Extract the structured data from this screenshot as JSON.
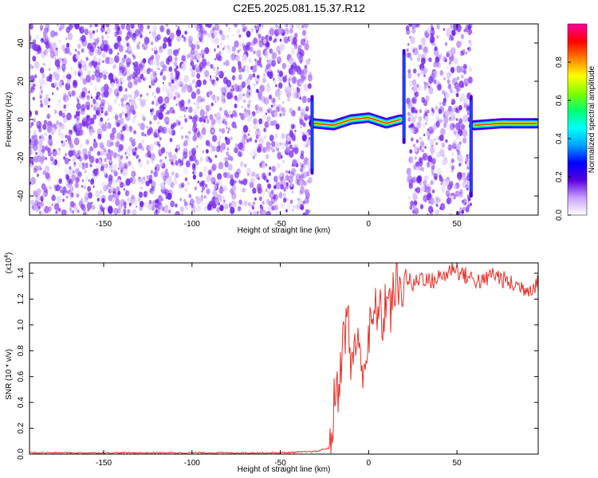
{
  "title": "C2E5.2025.081.15.37.R12",
  "chart_data": [
    {
      "type": "heatmap",
      "xlabel": "Height of straight line (km)",
      "ylabel": "Frequency (Hz)",
      "xlim": [
        -192,
        96
      ],
      "ylim": [
        -50,
        50
      ],
      "xticks": [
        -150,
        -100,
        -50,
        0,
        50
      ],
      "yticks": [
        -40,
        -20,
        0,
        20,
        40
      ],
      "colorbar": {
        "label": "Normalized spectral amplitude",
        "range": [
          0,
          1
        ],
        "ticks": [
          "0.0",
          "0.2",
          "0.4",
          "0.6",
          "0.8"
        ],
        "colors": [
          "#ffffff",
          "#c8a0ff",
          "#5a00e0",
          "#0000ff",
          "#00a0ff",
          "#00ffff",
          "#00ff70",
          "#80ff00",
          "#ffff00",
          "#ff8000",
          "#ff0000",
          "#ff00a0"
        ]
      },
      "features": {
        "noise_regions_km": [
          [
            -192,
            -33
          ],
          [
            22,
            58
          ]
        ],
        "tone_track": [
          {
            "x": -31,
            "y": -2
          },
          {
            "x": -20,
            "y": -3
          },
          {
            "x": -10,
            "y": 0
          },
          {
            "x": 0,
            "y": 1
          },
          {
            "x": 10,
            "y": -2
          },
          {
            "x": 18,
            "y": 0
          },
          {
            "x": 60,
            "y": -3
          },
          {
            "x": 75,
            "y": -2
          },
          {
            "x": 95,
            "y": -2
          }
        ],
        "vertical_spikes_km": [
          -32,
          20,
          58
        ]
      }
    },
    {
      "type": "line",
      "xlabel": "Height of straight line (km)",
      "ylabel": "SNR (10 * v/v)",
      "multiplier_label": "(x10",
      "multiplier_exp": "4",
      "multiplier_close": ")",
      "xlim": [
        -192,
        96
      ],
      "ylim": [
        0,
        1.48
      ],
      "xticks": [
        -150,
        -100,
        -50,
        0,
        50
      ],
      "yticks": [
        "0.0",
        "0.2",
        "0.4",
        "0.6",
        "0.8",
        "1.0",
        "1.2",
        "1.4"
      ],
      "line_color": "#e8312a",
      "series": [
        {
          "x": [
            -192,
            -150,
            -100,
            -50,
            -30,
            -22,
            -20,
            -19,
            -18,
            -15,
            -12,
            -10,
            -8,
            -5,
            -2,
            0,
            3,
            5,
            8,
            10,
            13,
            15,
            18,
            20,
            25,
            30,
            35,
            40,
            45,
            48,
            50,
            55,
            60,
            65,
            70,
            75,
            80,
            85,
            90,
            96
          ],
          "values": [
            0.01,
            0.01,
            0.01,
            0.01,
            0.02,
            0.05,
            0.3,
            0.5,
            0.45,
            0.8,
            1.1,
            0.65,
            0.9,
            0.75,
            0.7,
            0.9,
            1.05,
            1.15,
            1.0,
            1.25,
            1.1,
            1.35,
            1.2,
            1.4,
            1.3,
            1.38,
            1.33,
            1.37,
            1.4,
            1.46,
            1.42,
            1.38,
            1.35,
            1.33,
            1.4,
            1.36,
            1.32,
            1.3,
            1.28,
            1.32
          ]
        }
      ]
    }
  ]
}
